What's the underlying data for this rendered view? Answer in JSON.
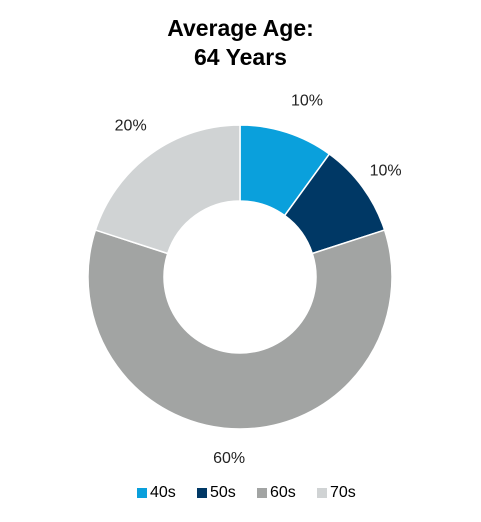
{
  "chart_data": {
    "type": "pie",
    "title_line1": "Average Age:",
    "title_line2": "64 Years",
    "categories": [
      "40s",
      "50s",
      "60s",
      "70s"
    ],
    "values": [
      10,
      10,
      60,
      20
    ],
    "data_labels": [
      "10%",
      "10%",
      "60%",
      "20%"
    ],
    "colors": [
      "#0aa0dc",
      "#003865",
      "#a2a4a3",
      "#d0d3d4"
    ],
    "legend_position": "bottom",
    "donut": true
  }
}
